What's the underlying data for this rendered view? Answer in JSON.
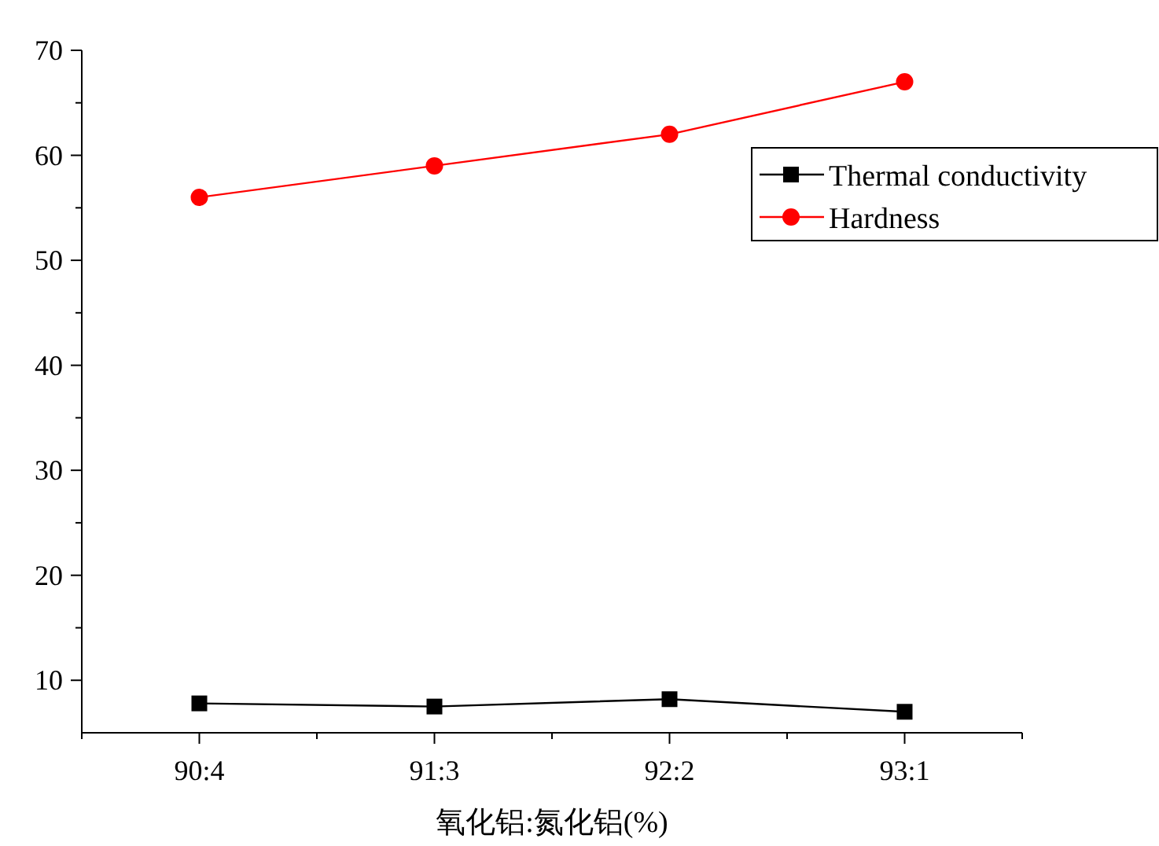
{
  "chart_data": {
    "type": "line",
    "xlabel": "氧化铝:氮化铝(%)",
    "categories": [
      "90:4",
      "91:3",
      "92:2",
      "93:1"
    ],
    "series": [
      {
        "name": "Thermal conductivity",
        "color": "#000000",
        "marker": "square",
        "values": [
          7.8,
          7.5,
          8.2,
          7.0
        ]
      },
      {
        "name": "Hardness",
        "color": "#ff0000",
        "marker": "circle",
        "values": [
          56,
          59,
          62,
          67
        ]
      }
    ],
    "ylim": [
      5,
      70
    ],
    "yticks": [
      10,
      20,
      30,
      40,
      50,
      60,
      70
    ],
    "grid": false,
    "legend": "top right",
    "line_style": "solid"
  }
}
